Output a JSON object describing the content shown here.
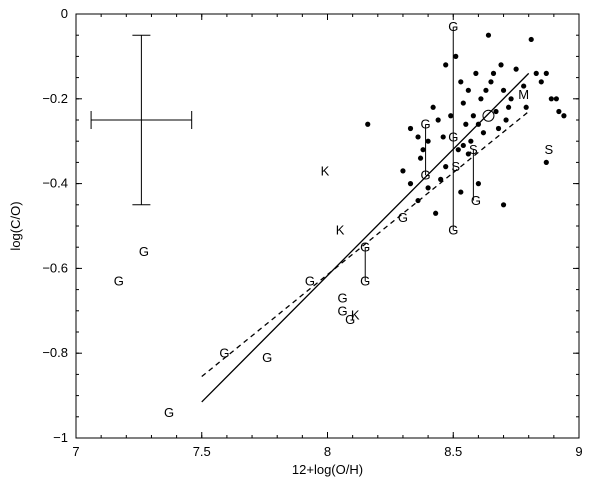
{
  "chart_data": {
    "type": "scatter",
    "xlabel": "12+log(O/H)",
    "ylabel": "log(C/O)",
    "xlim": [
      7,
      9
    ],
    "ylim": [
      -1,
      0
    ],
    "xticks": [
      "7",
      "7.5",
      "8",
      "8.5",
      "9"
    ],
    "yticks": [
      "0",
      "−0.2",
      "−0.4",
      "−0.6",
      "−0.8",
      "−1"
    ],
    "grid": false,
    "labeled_points": [
      {
        "label": "G",
        "x": 7.17,
        "y": -0.63
      },
      {
        "label": "G",
        "x": 7.27,
        "y": -0.56
      },
      {
        "label": "G",
        "x": 7.37,
        "y": -0.94
      },
      {
        "label": "G",
        "x": 7.59,
        "y": -0.8
      },
      {
        "label": "G",
        "x": 7.76,
        "y": -0.81
      },
      {
        "label": "G",
        "x": 7.93,
        "y": -0.63
      },
      {
        "label": "G",
        "x": 8.06,
        "y": -0.67
      },
      {
        "label": "G",
        "x": 8.06,
        "y": -0.7
      },
      {
        "label": "G",
        "x": 8.09,
        "y": -0.72
      },
      {
        "label": "G",
        "x": 8.15,
        "y": -0.55
      },
      {
        "label": "G",
        "x": 8.15,
        "y": -0.63
      },
      {
        "label": "G",
        "x": 8.3,
        "y": -0.48
      },
      {
        "label": "G",
        "x": 8.39,
        "y": -0.26
      },
      {
        "label": "G",
        "x": 8.39,
        "y": -0.38
      },
      {
        "label": "G",
        "x": 8.5,
        "y": -0.03
      },
      {
        "label": "G",
        "x": 8.5,
        "y": -0.29
      },
      {
        "label": "G",
        "x": 8.5,
        "y": -0.51
      },
      {
        "label": "G",
        "x": 8.59,
        "y": -0.44
      },
      {
        "label": "K",
        "x": 7.99,
        "y": -0.37
      },
      {
        "label": "K",
        "x": 8.05,
        "y": -0.51
      },
      {
        "label": "K",
        "x": 8.11,
        "y": -0.71
      },
      {
        "label": "S",
        "x": 8.51,
        "y": -0.36
      },
      {
        "label": "S",
        "x": 8.58,
        "y": -0.32
      },
      {
        "label": "S",
        "x": 8.88,
        "y": -0.32
      },
      {
        "label": "M",
        "x": 8.78,
        "y": -0.19
      }
    ],
    "open_circles": [
      {
        "x": 8.64,
        "y": -0.24
      }
    ],
    "filled_points": [
      {
        "x": 8.16,
        "y": -0.26
      },
      {
        "x": 8.33,
        "y": -0.27
      },
      {
        "x": 8.36,
        "y": -0.29
      },
      {
        "x": 8.38,
        "y": -0.32
      },
      {
        "x": 8.4,
        "y": -0.3
      },
      {
        "x": 8.42,
        "y": -0.22
      },
      {
        "x": 8.44,
        "y": -0.25
      },
      {
        "x": 8.46,
        "y": -0.29
      },
      {
        "x": 8.47,
        "y": -0.12
      },
      {
        "x": 8.49,
        "y": -0.24
      },
      {
        "x": 8.51,
        "y": -0.1
      },
      {
        "x": 8.53,
        "y": -0.16
      },
      {
        "x": 8.54,
        "y": -0.21
      },
      {
        "x": 8.55,
        "y": -0.26
      },
      {
        "x": 8.56,
        "y": -0.18
      },
      {
        "x": 8.57,
        "y": -0.3
      },
      {
        "x": 8.58,
        "y": -0.24
      },
      {
        "x": 8.59,
        "y": -0.14
      },
      {
        "x": 8.6,
        "y": -0.26
      },
      {
        "x": 8.61,
        "y": -0.2
      },
      {
        "x": 8.62,
        "y": -0.28
      },
      {
        "x": 8.63,
        "y": -0.18
      },
      {
        "x": 8.64,
        "y": -0.05
      },
      {
        "x": 8.65,
        "y": -0.16
      },
      {
        "x": 8.66,
        "y": -0.14
      },
      {
        "x": 8.67,
        "y": -0.23
      },
      {
        "x": 8.68,
        "y": -0.27
      },
      {
        "x": 8.69,
        "y": -0.12
      },
      {
        "x": 8.7,
        "y": -0.18
      },
      {
        "x": 8.71,
        "y": -0.25
      },
      {
        "x": 8.72,
        "y": -0.22
      },
      {
        "x": 8.73,
        "y": -0.2
      },
      {
        "x": 8.75,
        "y": -0.13
      },
      {
        "x": 8.78,
        "y": -0.17
      },
      {
        "x": 8.79,
        "y": -0.22
      },
      {
        "x": 8.81,
        "y": -0.06
      },
      {
        "x": 8.83,
        "y": -0.14
      },
      {
        "x": 8.85,
        "y": -0.16
      },
      {
        "x": 8.87,
        "y": -0.14
      },
      {
        "x": 8.89,
        "y": -0.2
      },
      {
        "x": 8.91,
        "y": -0.2
      },
      {
        "x": 8.92,
        "y": -0.23
      },
      {
        "x": 8.94,
        "y": -0.24
      },
      {
        "x": 8.3,
        "y": -0.37
      },
      {
        "x": 8.33,
        "y": -0.4
      },
      {
        "x": 8.36,
        "y": -0.44
      },
      {
        "x": 8.4,
        "y": -0.41
      },
      {
        "x": 8.43,
        "y": -0.47
      },
      {
        "x": 8.45,
        "y": -0.39
      },
      {
        "x": 8.47,
        "y": -0.36
      },
      {
        "x": 8.52,
        "y": -0.32
      },
      {
        "x": 8.54,
        "y": -0.31
      },
      {
        "x": 8.56,
        "y": -0.33
      },
      {
        "x": 8.6,
        "y": -0.4
      },
      {
        "x": 8.7,
        "y": -0.45
      },
      {
        "x": 8.87,
        "y": -0.35
      },
      {
        "x": 8.53,
        "y": -0.42
      },
      {
        "x": 8.37,
        "y": -0.34
      }
    ],
    "vertical_bars": [
      {
        "x": 8.15,
        "y1": -0.55,
        "y2": -0.63
      },
      {
        "x": 8.39,
        "y1": -0.26,
        "y2": -0.38
      },
      {
        "x": 8.5,
        "y1": -0.03,
        "y2": -0.51
      },
      {
        "x": 8.58,
        "y1": -0.32,
        "y2": -0.44
      }
    ],
    "representative_error_bar": {
      "x": 7.26,
      "y": -0.25,
      "x_low": 7.06,
      "x_high": 7.46,
      "y_low": -0.45,
      "y_high": -0.05
    },
    "fit_lines": [
      {
        "style": "solid",
        "x": [
          7.5,
          8.8
        ],
        "y": [
          -0.915,
          -0.14
        ]
      },
      {
        "style": "dashed",
        "x": [
          7.5,
          8.8
        ],
        "y": [
          -0.855,
          -0.23
        ]
      }
    ]
  }
}
